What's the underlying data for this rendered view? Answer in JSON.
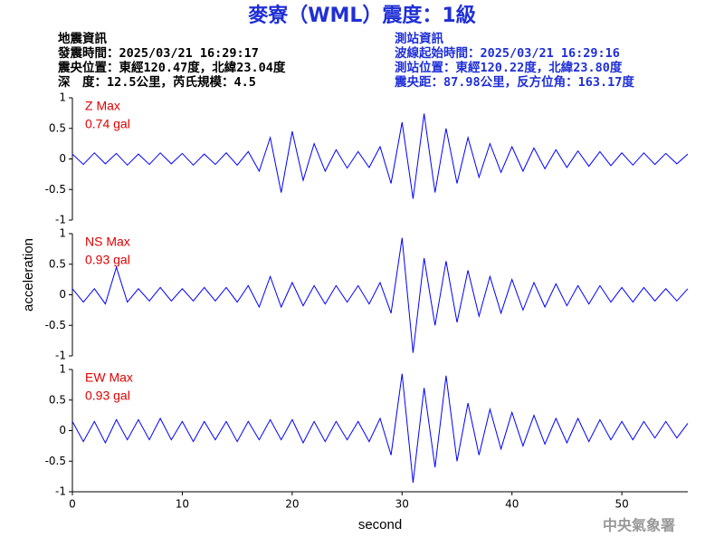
{
  "header": {
    "title": "麥寮（WML）震度：1級",
    "left": [
      "地震資訊",
      "發震時間：2025/03/21 16:29:17",
      "震央位置：東經120.47度，北緯23.04度",
      "深　度：12.5公里，芮氏規模：4.5"
    ],
    "right": [
      "測站資訊",
      "波線起始時間：2025/03/21 16:29:16",
      "測站位置：東經120.22度，北緯23.80度",
      "震央距：87.98公里，反方位角：163.17度"
    ]
  },
  "footer": "中央氣象署",
  "chart_data": [
    {
      "type": "line",
      "annotations": [
        "Z Max",
        "0.74 gal"
      ],
      "color": "#0000ff",
      "xlim": [
        0,
        56
      ],
      "ylim": [
        -1,
        1
      ],
      "yticks": [
        -1,
        -0.5,
        0,
        0.5,
        1
      ],
      "x": [
        0,
        1,
        2,
        3,
        4,
        5,
        6,
        7,
        8,
        9,
        10,
        11,
        12,
        13,
        14,
        15,
        16,
        17,
        18,
        19,
        20,
        21,
        22,
        23,
        24,
        25,
        26,
        27,
        28,
        29,
        30,
        31,
        32,
        33,
        34,
        35,
        36,
        37,
        38,
        39,
        40,
        41,
        42,
        43,
        44,
        45,
        46,
        47,
        48,
        49,
        50,
        51,
        52,
        53,
        54,
        55,
        56
      ],
      "values": [
        0.08,
        -0.09,
        0.1,
        -0.08,
        0.09,
        -0.1,
        0.08,
        -0.09,
        0.1,
        -0.08,
        0.09,
        -0.1,
        0.08,
        -0.09,
        0.1,
        -0.1,
        0.12,
        -0.2,
        0.35,
        -0.55,
        0.45,
        -0.35,
        0.25,
        -0.2,
        0.15,
        -0.15,
        0.12,
        -0.14,
        0.2,
        -0.4,
        0.6,
        -0.65,
        0.74,
        -0.55,
        0.5,
        -0.4,
        0.35,
        -0.3,
        0.25,
        -0.22,
        0.2,
        -0.2,
        0.18,
        -0.16,
        0.15,
        -0.14,
        0.13,
        -0.12,
        0.12,
        -0.11,
        0.1,
        -0.1,
        0.1,
        -0.09,
        0.09,
        -0.08,
        0.08
      ]
    },
    {
      "type": "line",
      "annotations": [
        "NS Max",
        "0.93 gal"
      ],
      "color": "#0000ff",
      "ylabel": "acceleration",
      "xlim": [
        0,
        56
      ],
      "ylim": [
        -1,
        1
      ],
      "yticks": [
        -1,
        -0.5,
        0,
        0.5,
        1
      ],
      "x": [
        0,
        1,
        2,
        3,
        4,
        5,
        6,
        7,
        8,
        9,
        10,
        11,
        12,
        13,
        14,
        15,
        16,
        17,
        18,
        19,
        20,
        21,
        22,
        23,
        24,
        25,
        26,
        27,
        28,
        29,
        30,
        31,
        32,
        33,
        34,
        35,
        36,
        37,
        38,
        39,
        40,
        41,
        42,
        43,
        44,
        45,
        46,
        47,
        48,
        49,
        50,
        51,
        52,
        53,
        54,
        55,
        56
      ],
      "values": [
        0.1,
        -0.12,
        0.1,
        -0.15,
        0.45,
        -0.12,
        0.1,
        -0.1,
        0.12,
        -0.1,
        0.1,
        -0.1,
        0.12,
        -0.1,
        0.12,
        -0.12,
        0.15,
        -0.2,
        0.3,
        -0.2,
        0.2,
        -0.18,
        0.15,
        -0.15,
        0.15,
        -0.12,
        0.15,
        -0.15,
        0.2,
        -0.3,
        0.93,
        -0.95,
        0.6,
        -0.5,
        0.55,
        -0.45,
        0.4,
        -0.35,
        0.3,
        -0.3,
        0.25,
        -0.25,
        0.2,
        -0.2,
        0.18,
        -0.18,
        0.15,
        -0.15,
        0.15,
        -0.12,
        0.12,
        -0.12,
        0.12,
        -0.1,
        0.1,
        -0.1,
        0.1
      ]
    },
    {
      "type": "line",
      "annotations": [
        "EW Max",
        "0.93 gal"
      ],
      "color": "#0000ff",
      "xlabel": "second",
      "xlim": [
        0,
        56
      ],
      "xticks": [
        0,
        10,
        20,
        30,
        40,
        50
      ],
      "ylim": [
        -1,
        1
      ],
      "yticks": [
        -1,
        -0.5,
        0,
        0.5,
        1
      ],
      "x": [
        0,
        1,
        2,
        3,
        4,
        5,
        6,
        7,
        8,
        9,
        10,
        11,
        12,
        13,
        14,
        15,
        16,
        17,
        18,
        19,
        20,
        21,
        22,
        23,
        24,
        25,
        26,
        27,
        28,
        29,
        30,
        31,
        32,
        33,
        34,
        35,
        36,
        37,
        38,
        39,
        40,
        41,
        42,
        43,
        44,
        45,
        46,
        47,
        48,
        49,
        50,
        51,
        52,
        53,
        54,
        55,
        56
      ],
      "values": [
        0.15,
        -0.18,
        0.15,
        -0.2,
        0.18,
        -0.15,
        0.18,
        -0.15,
        0.2,
        -0.15,
        0.15,
        -0.18,
        0.15,
        -0.15,
        0.15,
        -0.18,
        0.15,
        -0.15,
        0.18,
        -0.15,
        0.18,
        -0.2,
        0.15,
        -0.18,
        0.15,
        -0.15,
        0.15,
        -0.18,
        0.2,
        -0.4,
        0.93,
        -0.85,
        0.7,
        -0.6,
        0.9,
        -0.5,
        0.45,
        -0.4,
        0.35,
        -0.3,
        0.3,
        -0.25,
        0.25,
        -0.22,
        0.2,
        -0.2,
        0.2,
        -0.18,
        0.18,
        -0.15,
        0.15,
        -0.15,
        0.15,
        -0.12,
        0.15,
        -0.12,
        0.12
      ]
    }
  ]
}
